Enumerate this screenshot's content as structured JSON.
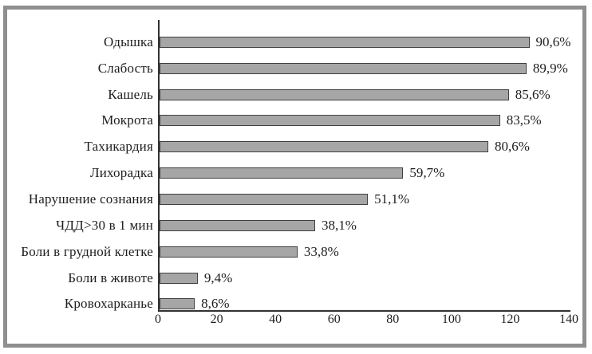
{
  "chart_data": {
    "type": "bar",
    "orientation": "horizontal",
    "title": "",
    "xlabel": "",
    "ylabel": "",
    "categories": [
      "Одышка",
      "Слабость",
      "Кашель",
      "Мокрота",
      "Тахикардия",
      "Лихорадка",
      "Нарушение сознания",
      "ЧДД>30 в 1 мин",
      "Боли в грудной клетке",
      "Боли в животе",
      "Кровохарканье"
    ],
    "values": [
      126,
      125,
      119,
      116,
      112,
      83,
      71,
      53,
      47,
      13,
      12
    ],
    "value_labels": [
      "90,6%",
      "89,9%",
      "85,6%",
      "83,5%",
      "80,6%",
      "59,7%",
      "51,1%",
      "38,1%",
      "33,8%",
      "9,4%",
      "8,6%"
    ],
    "xlim": [
      0,
      140
    ],
    "x_ticks": [
      0,
      20,
      40,
      60,
      80,
      100,
      120,
      140
    ],
    "grid": false,
    "legend": "none"
  },
  "style": {
    "bar_fill": "#a6a6a6",
    "bar_border": "#404040",
    "axis_color": "#333333",
    "text_color": "#1e1e1e",
    "frame_color": "#8f8f8f",
    "background": "#ffffff"
  }
}
